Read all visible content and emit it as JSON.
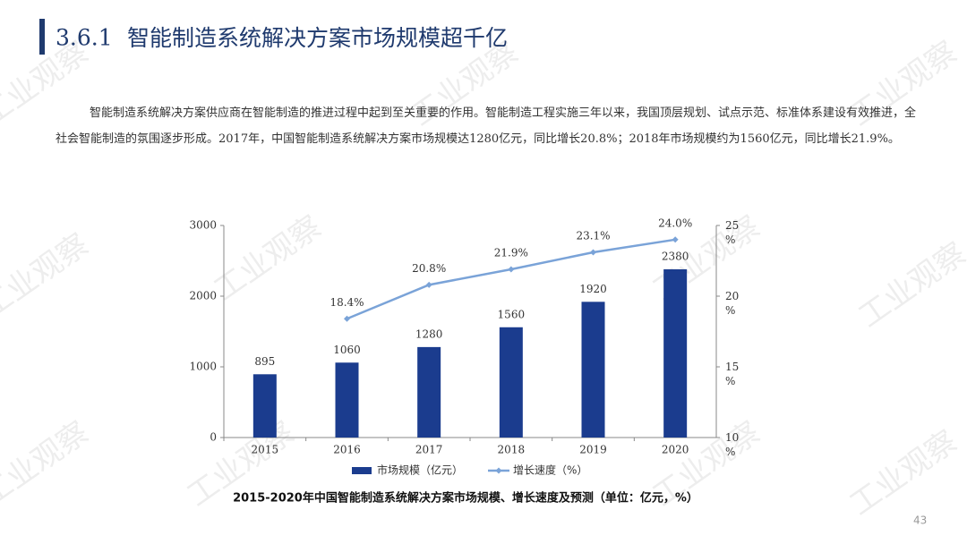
{
  "section_number": "3.6.1",
  "heading": "智能制造系统解决方案市场规模超千亿",
  "paragraph": "智能制造系统解决方案供应商在智能制造的推进过程中起到至关重要的作用。智能制造工程实施三年以来，我国顶层规划、试点示范、标准体系建设有效推进，全社会智能制造的氛围逐步形成。2017年，中国智能制造系统解决方案市场规模达1280亿元，同比增长20.8%；2018年市场规模约为1560亿元，同比增长21.9%。",
  "watermark": "工业观察",
  "chart_data": {
    "type": "bar",
    "categories": [
      "2015",
      "2016",
      "2017",
      "2018",
      "2019",
      "2020"
    ],
    "series": [
      {
        "name": "市场规模（亿元）",
        "type": "bar",
        "color": "#1b3c8e",
        "values": [
          895,
          1060,
          1280,
          1560,
          1920,
          2380
        ]
      },
      {
        "name": "增长速度（%）",
        "type": "line",
        "axis": "y2",
        "color": "#7aa3d8",
        "values": [
          null,
          18.4,
          20.8,
          21.9,
          23.1,
          24.0
        ],
        "value_labels": [
          null,
          "18.4%",
          "20.8%",
          "21.9%",
          "23.1%",
          "24.0%"
        ]
      }
    ],
    "ylim": [
      0,
      3000
    ],
    "yticks": [
      0,
      1000,
      2000,
      3000
    ],
    "y2lim": [
      10,
      25
    ],
    "y2ticks": [
      {
        "value": 10,
        "label": "10 %"
      },
      {
        "value": 15,
        "label": "15 %"
      },
      {
        "value": 20,
        "label": "20 %"
      },
      {
        "value": 25,
        "label": "25 %"
      }
    ],
    "legend": "bottom"
  },
  "caption": "2015-2020年中国智能制造系统解决方案市场规模、增长速度及预测（单位：亿元，%）",
  "page_number": "43"
}
